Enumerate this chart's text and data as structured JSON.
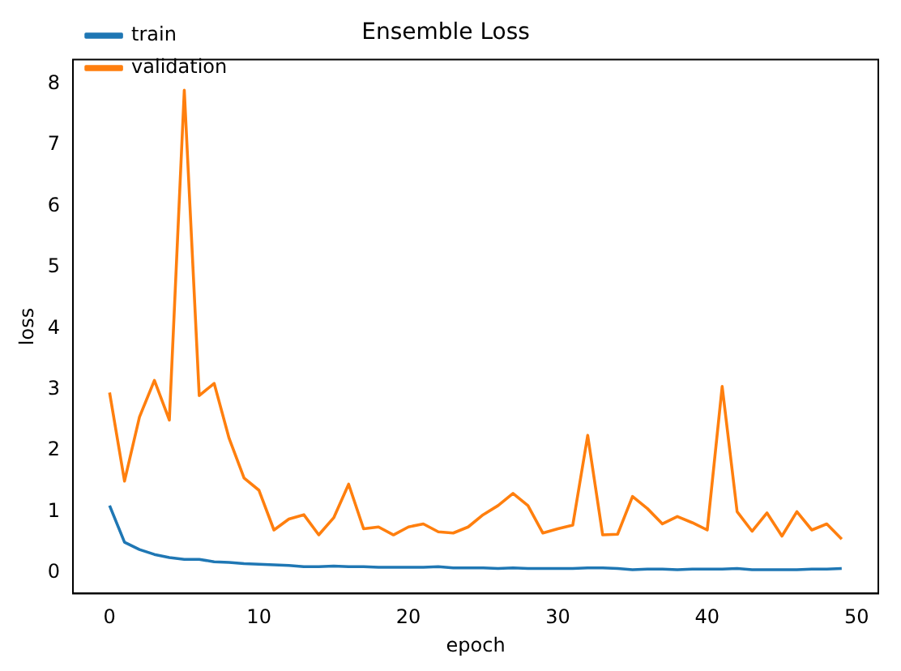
{
  "chart_data": {
    "type": "line",
    "title": "Ensemble Loss",
    "xlabel": "epoch",
    "ylabel": "loss",
    "x": [
      0,
      1,
      2,
      3,
      4,
      5,
      6,
      7,
      8,
      9,
      10,
      11,
      12,
      13,
      14,
      15,
      16,
      17,
      18,
      19,
      20,
      21,
      22,
      23,
      24,
      25,
      26,
      27,
      28,
      29,
      30,
      31,
      32,
      33,
      34,
      35,
      36,
      37,
      38,
      39,
      40,
      41,
      42,
      43,
      44,
      45,
      46,
      47,
      48,
      49
    ],
    "series": [
      {
        "name": "train",
        "color": "#1f77b4",
        "values": [
          1.1,
          0.5,
          0.38,
          0.3,
          0.25,
          0.22,
          0.22,
          0.18,
          0.17,
          0.15,
          0.14,
          0.13,
          0.12,
          0.1,
          0.1,
          0.11,
          0.1,
          0.1,
          0.09,
          0.09,
          0.09,
          0.09,
          0.1,
          0.08,
          0.08,
          0.08,
          0.07,
          0.08,
          0.07,
          0.07,
          0.07,
          0.07,
          0.08,
          0.08,
          0.07,
          0.05,
          0.06,
          0.06,
          0.05,
          0.06,
          0.06,
          0.06,
          0.07,
          0.05,
          0.05,
          0.05,
          0.05,
          0.06,
          0.06,
          0.07
        ]
      },
      {
        "name": "validation",
        "color": "#ff7f0e",
        "values": [
          2.95,
          1.5,
          2.55,
          3.15,
          2.5,
          7.9,
          2.9,
          3.1,
          2.2,
          1.55,
          1.35,
          0.7,
          0.88,
          0.95,
          0.62,
          0.9,
          1.45,
          0.72,
          0.75,
          0.62,
          0.75,
          0.8,
          0.67,
          0.65,
          0.75,
          0.95,
          1.1,
          1.3,
          1.1,
          0.65,
          0.72,
          0.78,
          2.25,
          0.62,
          0.63,
          1.25,
          1.05,
          0.8,
          0.92,
          0.82,
          0.7,
          3.05,
          1.0,
          0.68,
          0.98,
          0.6,
          1.0,
          0.7,
          0.8,
          0.55
        ]
      }
    ],
    "xlim": [
      -2.45,
      51.45
    ],
    "xticks": [
      0,
      10,
      20,
      30,
      40,
      50
    ],
    "ylim": [
      -0.34,
      8.4
    ],
    "yticks": [
      0,
      1,
      2,
      3,
      4,
      5,
      6,
      7,
      8
    ],
    "grid": false,
    "legend": "top left",
    "marker": "none",
    "line_style": "solid"
  }
}
